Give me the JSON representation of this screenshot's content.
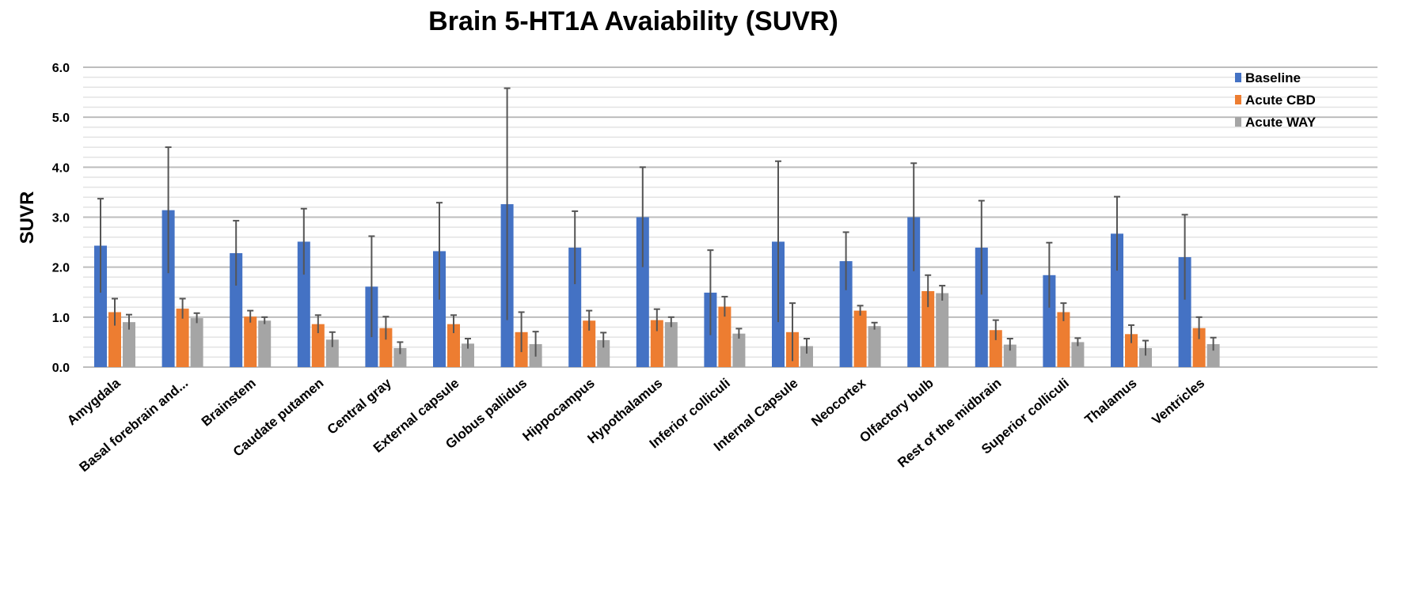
{
  "chart_data": {
    "type": "bar",
    "title": "Brain 5-HT1A Avaiability (SUVR)",
    "xlabel": "",
    "ylabel": "SUVR",
    "ylim": [
      0,
      6
    ],
    "yticks": [
      "0.0",
      "1.0",
      "2.0",
      "3.0",
      "4.0",
      "5.0",
      "6.0"
    ],
    "grid": true,
    "legend_position": "top-right",
    "categories": [
      "Amygdala",
      "Basal forebrain and...",
      "Brainstem",
      "Caudate putamen",
      "Central gray",
      "External capsule",
      "Globus pallidus",
      "Hippocampus",
      "Hypothalamus",
      "Inferior colliculi",
      "Internal Capsule",
      "Neocortex",
      "Olfactory bulb",
      "Rest of the midbrain",
      "Superior colliculi",
      "Thalamus",
      "Ventricles"
    ],
    "series": [
      {
        "name": "Baseline",
        "color": "#4472C4",
        "values": [
          2.43,
          3.14,
          2.28,
          2.51,
          1.61,
          2.32,
          3.26,
          2.39,
          3.0,
          1.49,
          2.51,
          2.12,
          3.0,
          2.39,
          1.84,
          2.67,
          2.2
        ],
        "errors": [
          0.94,
          1.26,
          0.65,
          0.66,
          1.01,
          0.97,
          2.32,
          0.73,
          1.0,
          0.85,
          1.61,
          0.58,
          1.08,
          0.94,
          0.65,
          0.74,
          0.85
        ]
      },
      {
        "name": "Acute CBD",
        "color": "#ED7D31",
        "values": [
          1.1,
          1.17,
          1.01,
          0.86,
          0.78,
          0.86,
          0.7,
          0.93,
          0.94,
          1.21,
          0.7,
          1.13,
          1.52,
          0.74,
          1.1,
          0.66,
          0.78
        ],
        "errors": [
          0.27,
          0.2,
          0.12,
          0.18,
          0.23,
          0.18,
          0.4,
          0.2,
          0.22,
          0.2,
          0.58,
          0.1,
          0.32,
          0.2,
          0.18,
          0.18,
          0.22
        ]
      },
      {
        "name": "Acute WAY",
        "color": "#A5A5A5",
        "values": [
          0.9,
          0.98,
          0.93,
          0.55,
          0.38,
          0.47,
          0.46,
          0.54,
          0.9,
          0.67,
          0.42,
          0.82,
          1.48,
          0.45,
          0.5,
          0.38,
          0.46
        ],
        "errors": [
          0.15,
          0.1,
          0.07,
          0.15,
          0.12,
          0.1,
          0.25,
          0.15,
          0.1,
          0.1,
          0.15,
          0.07,
          0.15,
          0.12,
          0.08,
          0.15,
          0.13
        ]
      }
    ]
  }
}
